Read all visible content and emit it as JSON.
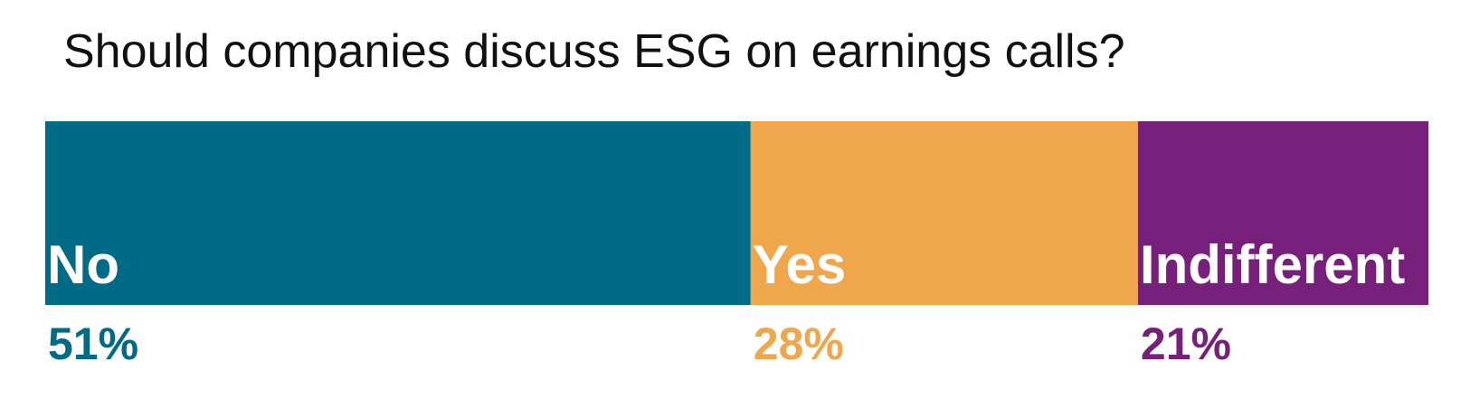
{
  "chart_data": {
    "type": "stacked-bar",
    "title": "Should companies discuss ESG on earnings calls?",
    "xlim": [
      0,
      100
    ],
    "series": [
      {
        "name": "No",
        "color": "#006b87",
        "values": [
          51
        ],
        "value_labels": [
          "51%"
        ]
      },
      {
        "name": "Yes",
        "color": "#f0a64b",
        "values": [
          28
        ],
        "value_labels": [
          "28%"
        ]
      },
      {
        "name": "Indifferent",
        "color": "#761f7b",
        "values": [
          21
        ],
        "value_labels": [
          "21%"
        ]
      }
    ]
  }
}
